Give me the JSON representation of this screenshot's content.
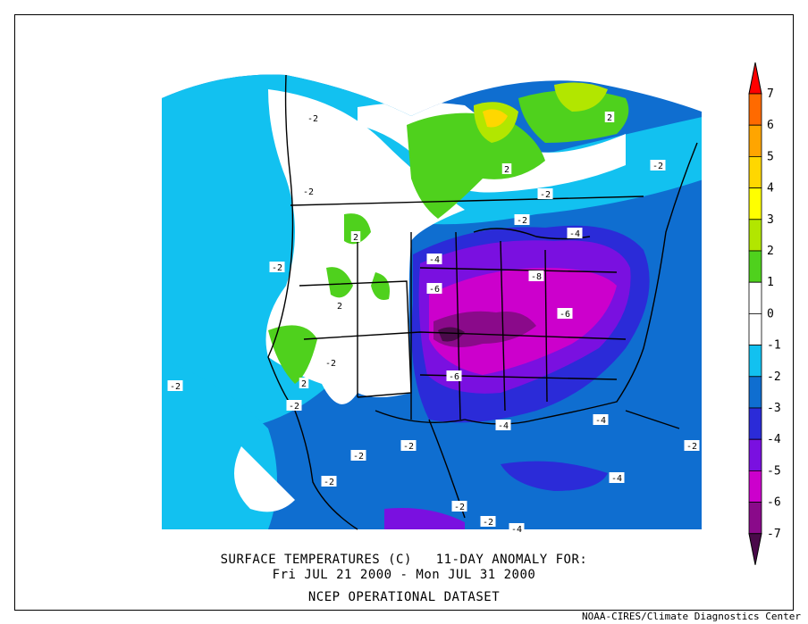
{
  "map": {
    "title_line1": "SURFACE TEMPERATURES (C)   11-DAY ANOMALY FOR:",
    "title_line2": "Fri JUL 21 2000 - Mon JUL 31 2000",
    "title_line3": "NCEP OPERATIONAL DATASET",
    "credit": "NOAA-CIRES/Climate Diagnostics Center"
  },
  "colorbar": {
    "levels": [
      {
        "label": "7",
        "color": "#ff0000"
      },
      {
        "label": "6",
        "color": "#ff6a00"
      },
      {
        "label": "5",
        "color": "#ffa500"
      },
      {
        "label": "4",
        "color": "#ffd700"
      },
      {
        "label": "3",
        "color": "#ffff00"
      },
      {
        "label": "2",
        "color": "#b2e600"
      },
      {
        "label": "1",
        "color": "#4fd11d"
      },
      {
        "label": "0",
        "color": "#ffffff"
      },
      {
        "label": "-1",
        "color": "#ffffff"
      },
      {
        "label": "-2",
        "color": "#12c1f0"
      },
      {
        "label": "-3",
        "color": "#0f6ed0"
      },
      {
        "label": "-4",
        "color": "#2b2bd8"
      },
      {
        "label": "-5",
        "color": "#7a10e0"
      },
      {
        "label": "-6",
        "color": "#cc00cc"
      },
      {
        "label": "-7",
        "color": "#8a0a8a"
      }
    ],
    "bottom_color": "#4a0a4a"
  },
  "contour_labels": [
    {
      "text": "-2"
    },
    {
      "text": "2"
    },
    {
      "text": "-2"
    },
    {
      "text": "-2"
    },
    {
      "text": "2"
    },
    {
      "text": "-2"
    },
    {
      "text": "-2"
    },
    {
      "text": "-4"
    },
    {
      "text": "2"
    },
    {
      "text": "-4"
    },
    {
      "text": "-2"
    },
    {
      "text": "-6"
    },
    {
      "text": "-8"
    },
    {
      "text": "2"
    },
    {
      "text": "-6"
    },
    {
      "text": "-2"
    },
    {
      "text": "-2"
    },
    {
      "text": "-6"
    },
    {
      "text": "-2"
    },
    {
      "text": "2"
    },
    {
      "text": "-4"
    },
    {
      "text": "-4"
    },
    {
      "text": "-2"
    },
    {
      "text": "-2"
    },
    {
      "text": "-2"
    },
    {
      "text": "-4"
    },
    {
      "text": "-2"
    },
    {
      "text": "-2"
    },
    {
      "text": "-4"
    },
    {
      "text": "-2"
    }
  ]
}
